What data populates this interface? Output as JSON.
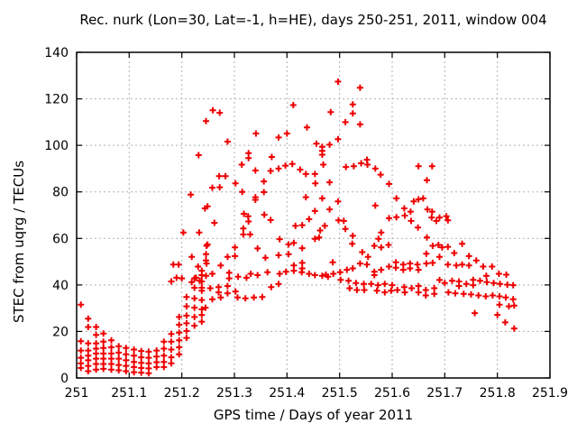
{
  "chart_data": {
    "type": "scatter",
    "title": "Rec. nurk (Lon=30, Lat=-1, h=HE), days 250-251, 2011, window 004",
    "xlabel": "GPS time / Days of year 2011",
    "ylabel": "STEC from uqrg / TECUs",
    "xlim": [
      251,
      251.9
    ],
    "ylim": [
      0,
      140
    ],
    "xticks": [
      "251",
      "251.1",
      "251.2",
      "251.3",
      "251.4",
      "251.5",
      "251.6",
      "251.7",
      "251.8",
      "251.9"
    ],
    "yticks": [
      "0",
      "20",
      "40",
      "60",
      "80",
      "100",
      "120",
      "140"
    ],
    "grid": true,
    "legend": false,
    "marker": {
      "shape": "plus",
      "color": "#ee0000",
      "size": 7
    },
    "colors": {
      "background": "#ffffff",
      "grid": "#b0b0b0",
      "axis": "#000000",
      "text": "#000000"
    },
    "points": [
      [
        251.008,
        31.5
      ],
      [
        251.008,
        15.8
      ],
      [
        251.008,
        11.8
      ],
      [
        251.008,
        8.7
      ],
      [
        251.008,
        6.3
      ],
      [
        251.008,
        4.3
      ],
      [
        251.022,
        25.5
      ],
      [
        251.022,
        21.9
      ],
      [
        251.022,
        14.9
      ],
      [
        251.022,
        11.8
      ],
      [
        251.022,
        9.6
      ],
      [
        251.022,
        7.6
      ],
      [
        251.022,
        5.2
      ],
      [
        251.022,
        2.9
      ],
      [
        251.037,
        21.9
      ],
      [
        251.037,
        18.5
      ],
      [
        251.037,
        14.9
      ],
      [
        251.037,
        12.6
      ],
      [
        251.037,
        10.5
      ],
      [
        251.037,
        8.3
      ],
      [
        251.037,
        6.0
      ],
      [
        251.037,
        3.6
      ],
      [
        251.051,
        19.1
      ],
      [
        251.051,
        15.6
      ],
      [
        251.051,
        12.9
      ],
      [
        251.051,
        10.5
      ],
      [
        251.051,
        8.3
      ],
      [
        251.051,
        6.0
      ],
      [
        251.051,
        3.9
      ],
      [
        251.066,
        16.2
      ],
      [
        251.066,
        13.2
      ],
      [
        251.066,
        10.5
      ],
      [
        251.066,
        8.3
      ],
      [
        251.066,
        6.0
      ],
      [
        251.066,
        3.6
      ],
      [
        251.08,
        13.6
      ],
      [
        251.08,
        10.9
      ],
      [
        251.08,
        8.3
      ],
      [
        251.08,
        5.6
      ],
      [
        251.08,
        3.3
      ],
      [
        251.094,
        12.9
      ],
      [
        251.094,
        10.2
      ],
      [
        251.094,
        7.6
      ],
      [
        251.094,
        5.2
      ],
      [
        251.094,
        2.9
      ],
      [
        251.109,
        12.2
      ],
      [
        251.109,
        9.6
      ],
      [
        251.109,
        6.9
      ],
      [
        251.109,
        4.7
      ],
      [
        251.109,
        2.5
      ],
      [
        251.123,
        11.6
      ],
      [
        251.123,
        8.9
      ],
      [
        251.123,
        6.5
      ],
      [
        251.123,
        4.3
      ],
      [
        251.123,
        2.3
      ],
      [
        251.137,
        11.3
      ],
      [
        251.137,
        8.7
      ],
      [
        251.137,
        6.3
      ],
      [
        251.137,
        4.1
      ],
      [
        251.137,
        2.0
      ],
      [
        251.152,
        11.8
      ],
      [
        251.152,
        9.2
      ],
      [
        251.152,
        6.8
      ],
      [
        251.152,
        4.7
      ],
      [
        251.166,
        15.6
      ],
      [
        251.166,
        12.6
      ],
      [
        251.166,
        9.6
      ],
      [
        251.166,
        6.9
      ],
      [
        251.166,
        4.7
      ],
      [
        251.18,
        18.9
      ],
      [
        251.18,
        15.6
      ],
      [
        251.18,
        12.2
      ],
      [
        251.18,
        8.9
      ],
      [
        251.18,
        6.3
      ],
      [
        251.195,
        26.2
      ],
      [
        251.195,
        22.9
      ],
      [
        251.195,
        19.5
      ],
      [
        251.195,
        16.2
      ],
      [
        251.195,
        13.2
      ],
      [
        251.195,
        10.2
      ],
      [
        251.209,
        34.8
      ],
      [
        251.209,
        30.8
      ],
      [
        251.209,
        26.8
      ],
      [
        251.209,
        23.5
      ],
      [
        251.209,
        20.2
      ],
      [
        251.209,
        17.2
      ],
      [
        251.224,
        42.8
      ],
      [
        251.224,
        38.8
      ],
      [
        251.224,
        34.2
      ],
      [
        251.224,
        30.2
      ],
      [
        251.224,
        26.2
      ],
      [
        251.224,
        22.5
      ],
      [
        251.238,
        46.1
      ],
      [
        251.238,
        41.5
      ],
      [
        251.238,
        37.5
      ],
      [
        251.238,
        33.5
      ],
      [
        251.238,
        29.5
      ],
      [
        251.249,
        73.8
      ],
      [
        251.203,
        62.5
      ],
      [
        251.233,
        62.5
      ],
      [
        251.249,
        57.4
      ],
      [
        251.246,
        53.2
      ],
      [
        251.219,
        52.1
      ],
      [
        251.246,
        50.5
      ],
      [
        251.231,
        47.9
      ],
      [
        251.184,
        48.8
      ],
      [
        251.194,
        48.8
      ],
      [
        251.246,
        43.9
      ],
      [
        251.227,
        43.1
      ],
      [
        251.19,
        43.1
      ],
      [
        251.2,
        42.8
      ],
      [
        251.219,
        41.2
      ],
      [
        251.234,
        41.8
      ],
      [
        251.18,
        41.5
      ],
      [
        251.259,
        115.1
      ],
      [
        251.272,
        114.0
      ],
      [
        251.246,
        110.4
      ],
      [
        251.412,
        117.3
      ],
      [
        251.341,
        105.1
      ],
      [
        251.384,
        103.4
      ],
      [
        251.4,
        105.1
      ],
      [
        251.287,
        101.6
      ],
      [
        251.232,
        95.8
      ],
      [
        251.327,
        96.7
      ],
      [
        251.327,
        94.5
      ],
      [
        251.314,
        91.7
      ],
      [
        251.371,
        95.0
      ],
      [
        251.34,
        89.2
      ],
      [
        251.369,
        89.0
      ],
      [
        251.384,
        90.0
      ],
      [
        251.397,
        91.3
      ],
      [
        251.41,
        92.0
      ],
      [
        251.425,
        89.6
      ],
      [
        251.271,
        86.8
      ],
      [
        251.283,
        86.8
      ],
      [
        251.302,
        83.7
      ],
      [
        251.272,
        82.0
      ],
      [
        251.258,
        81.8
      ],
      [
        251.217,
        78.8
      ],
      [
        251.315,
        80.0
      ],
      [
        251.244,
        72.9
      ],
      [
        251.34,
        77.7
      ],
      [
        251.34,
        76.6
      ],
      [
        251.356,
        84.5
      ],
      [
        251.356,
        79.9
      ],
      [
        251.318,
        70.6
      ],
      [
        251.326,
        69.5
      ],
      [
        251.327,
        67.3
      ],
      [
        251.357,
        70.2
      ],
      [
        251.369,
        67.9
      ],
      [
        251.497,
        127.4
      ],
      [
        251.539,
        124.8
      ],
      [
        251.525,
        117.6
      ],
      [
        251.483,
        114.3
      ],
      [
        251.525,
        113.7
      ],
      [
        251.511,
        110.0
      ],
      [
        251.539,
        109.0
      ],
      [
        251.438,
        107.7
      ],
      [
        251.497,
        102.7
      ],
      [
        251.456,
        100.7
      ],
      [
        251.467,
        99.4
      ],
      [
        251.481,
        100.3
      ],
      [
        251.467,
        97.6
      ],
      [
        251.467,
        96.0
      ],
      [
        251.469,
        91.7
      ],
      [
        251.512,
        90.7
      ],
      [
        251.527,
        91.0
      ],
      [
        251.541,
        92.3
      ],
      [
        251.552,
        93.8
      ],
      [
        251.553,
        91.7
      ],
      [
        251.568,
        90.0
      ],
      [
        251.578,
        87.4
      ],
      [
        251.436,
        87.7
      ],
      [
        251.453,
        87.7
      ],
      [
        251.454,
        83.7
      ],
      [
        251.481,
        84.1
      ],
      [
        251.594,
        83.4
      ],
      [
        251.65,
        91.0
      ],
      [
        251.676,
        91.0
      ],
      [
        251.666,
        85.0
      ],
      [
        251.436,
        77.7
      ],
      [
        251.467,
        77.2
      ],
      [
        251.497,
        75.9
      ],
      [
        251.608,
        77.2
      ],
      [
        251.568,
        74.1
      ],
      [
        251.641,
        75.9
      ],
      [
        251.65,
        76.8
      ],
      [
        251.659,
        77.2
      ],
      [
        251.453,
        71.8
      ],
      [
        251.481,
        72.5
      ],
      [
        251.623,
        72.9
      ],
      [
        251.635,
        71.5
      ],
      [
        251.667,
        72.5
      ],
      [
        251.676,
        71.5
      ],
      [
        251.608,
        69.1
      ],
      [
        251.624,
        69.8
      ],
      [
        251.498,
        67.8
      ],
      [
        251.508,
        67.5
      ],
      [
        251.636,
        67.5
      ],
      [
        251.684,
        67.5
      ],
      [
        251.69,
        69.0
      ],
      [
        251.703,
        69.5
      ],
      [
        251.262,
        66.7
      ],
      [
        251.317,
        64.3
      ],
      [
        251.317,
        61.7
      ],
      [
        251.33,
        61.7
      ],
      [
        251.416,
        65.4
      ],
      [
        251.429,
        65.7
      ],
      [
        251.442,
        68.3
      ],
      [
        251.463,
        63.4
      ],
      [
        251.472,
        65.4
      ],
      [
        251.247,
        56.8
      ],
      [
        251.301,
        56.1
      ],
      [
        251.344,
        55.7
      ],
      [
        251.386,
        59.7
      ],
      [
        251.403,
        57.4
      ],
      [
        251.413,
        58.1
      ],
      [
        251.429,
        55.8
      ],
      [
        251.453,
        59.8
      ],
      [
        251.461,
        60.4
      ],
      [
        251.287,
        52.1
      ],
      [
        251.301,
        52.4
      ],
      [
        251.359,
        51.7
      ],
      [
        251.384,
        52.8
      ],
      [
        251.403,
        53.2
      ],
      [
        251.413,
        48.4
      ],
      [
        251.429,
        49.5
      ],
      [
        251.429,
        47.1
      ],
      [
        251.247,
        49.2
      ],
      [
        251.274,
        48.4
      ],
      [
        251.238,
        44.2
      ],
      [
        251.258,
        44.8
      ],
      [
        251.29,
        45.2
      ],
      [
        251.29,
        42.8
      ],
      [
        251.307,
        43.5
      ],
      [
        251.323,
        43.1
      ],
      [
        251.331,
        44.8
      ],
      [
        251.344,
        44.2
      ],
      [
        251.363,
        45.5
      ],
      [
        251.386,
        44.8
      ],
      [
        251.398,
        45.7
      ],
      [
        251.413,
        46.1
      ],
      [
        251.428,
        45.5
      ],
      [
        251.442,
        44.8
      ],
      [
        251.453,
        44.2
      ],
      [
        251.467,
        43.9
      ],
      [
        251.478,
        43.5
      ],
      [
        251.238,
        38.8
      ],
      [
        251.254,
        38.6
      ],
      [
        251.27,
        39.1
      ],
      [
        251.287,
        39.5
      ],
      [
        251.27,
        36.8
      ],
      [
        251.287,
        36.4
      ],
      [
        251.302,
        37.2
      ],
      [
        251.258,
        33.8
      ],
      [
        251.274,
        34.6
      ],
      [
        251.306,
        34.6
      ],
      [
        251.321,
        34.2
      ],
      [
        251.337,
        34.6
      ],
      [
        251.353,
        34.8
      ],
      [
        251.37,
        39.1
      ],
      [
        251.384,
        40.4
      ],
      [
        251.245,
        30.2
      ],
      [
        251.238,
        27.1
      ],
      [
        251.238,
        24.2
      ],
      [
        251.594,
        68.7
      ],
      [
        251.675,
        69.0
      ],
      [
        251.511,
        64.1
      ],
      [
        251.525,
        61.1
      ],
      [
        251.524,
        57.7
      ],
      [
        251.579,
        62.5
      ],
      [
        251.649,
        64.7
      ],
      [
        251.574,
        59.8
      ],
      [
        251.566,
        56.8
      ],
      [
        251.579,
        56.1
      ],
      [
        251.593,
        57.2
      ],
      [
        251.666,
        60.4
      ],
      [
        251.677,
        56.8
      ],
      [
        251.688,
        57.2
      ],
      [
        251.665,
        53.4
      ],
      [
        251.69,
        52.1
      ],
      [
        251.487,
        49.7
      ],
      [
        251.543,
        54.1
      ],
      [
        251.554,
        52.1
      ],
      [
        251.539,
        49.2
      ],
      [
        251.552,
        48.8
      ],
      [
        251.525,
        47.1
      ],
      [
        251.514,
        46.5
      ],
      [
        251.501,
        45.5
      ],
      [
        251.488,
        44.8
      ],
      [
        251.474,
        44.4
      ],
      [
        251.566,
        45.7
      ],
      [
        251.579,
        46.5
      ],
      [
        251.566,
        44.2
      ],
      [
        251.594,
        47.9
      ],
      [
        251.607,
        49.7
      ],
      [
        251.607,
        47.4
      ],
      [
        251.621,
        48.8
      ],
      [
        251.621,
        46.5
      ],
      [
        251.634,
        49.2
      ],
      [
        251.634,
        47.1
      ],
      [
        251.648,
        48.8
      ],
      [
        251.65,
        46.5
      ],
      [
        251.665,
        49.2
      ],
      [
        251.677,
        49.5
      ],
      [
        251.502,
        42.2
      ],
      [
        251.517,
        41.8
      ],
      [
        251.531,
        40.8
      ],
      [
        251.546,
        40.4
      ],
      [
        251.56,
        40.4
      ],
      [
        251.573,
        39.9
      ],
      [
        251.586,
        40.4
      ],
      [
        251.6,
        39.9
      ],
      [
        251.571,
        37.5
      ],
      [
        251.586,
        36.8
      ],
      [
        251.598,
        37.5
      ],
      [
        251.61,
        37.8
      ],
      [
        251.623,
        39.1
      ],
      [
        251.624,
        36.8
      ],
      [
        251.637,
        38.6
      ],
      [
        251.65,
        39.5
      ],
      [
        251.65,
        36.8
      ],
      [
        251.664,
        37.8
      ],
      [
        251.664,
        35.5
      ],
      [
        251.68,
        38.6
      ],
      [
        251.68,
        36.2
      ],
      [
        251.547,
        37.8
      ],
      [
        251.533,
        37.8
      ],
      [
        251.519,
        38.6
      ],
      [
        251.706,
        67.8
      ],
      [
        251.733,
        57.7
      ],
      [
        251.695,
        56.1
      ],
      [
        251.706,
        56.4
      ],
      [
        251.718,
        53.7
      ],
      [
        251.746,
        52.4
      ],
      [
        251.76,
        50.5
      ],
      [
        251.773,
        47.9
      ],
      [
        251.706,
        48.8
      ],
      [
        251.722,
        48.4
      ],
      [
        251.733,
        48.8
      ],
      [
        251.746,
        48.4
      ],
      [
        251.69,
        42.1
      ],
      [
        251.7,
        40.8
      ],
      [
        251.714,
        41.8
      ],
      [
        251.727,
        41.5
      ],
      [
        251.727,
        39.5
      ],
      [
        251.741,
        40.4
      ],
      [
        251.754,
        39.9
      ],
      [
        251.754,
        42.2
      ],
      [
        251.767,
        41.8
      ],
      [
        251.78,
        41.2
      ],
      [
        251.793,
        40.8
      ],
      [
        251.805,
        40.4
      ],
      [
        251.819,
        40.1
      ],
      [
        251.83,
        39.9
      ],
      [
        251.707,
        36.8
      ],
      [
        251.72,
        36.4
      ],
      [
        251.736,
        36.2
      ],
      [
        251.75,
        35.9
      ],
      [
        251.764,
        35.5
      ],
      [
        251.778,
        35.1
      ],
      [
        251.791,
        35.5
      ],
      [
        251.804,
        35.1
      ],
      [
        251.816,
        34.6
      ],
      [
        251.83,
        33.8
      ],
      [
        251.757,
        27.9
      ],
      [
        251.8,
        27.1
      ],
      [
        251.815,
        23.9
      ],
      [
        251.832,
        21.3
      ],
      [
        251.822,
        30.8
      ],
      [
        251.804,
        31.5
      ],
      [
        251.79,
        47.9
      ],
      [
        251.803,
        44.8
      ],
      [
        251.817,
        44.4
      ],
      [
        251.779,
        43.9
      ],
      [
        251.832,
        31.1
      ]
    ]
  }
}
